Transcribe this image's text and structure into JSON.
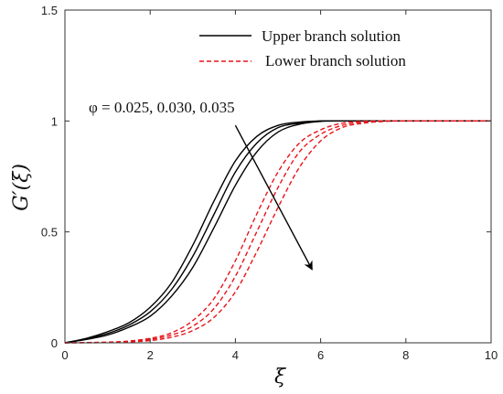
{
  "chart_data": {
    "type": "line",
    "xlabel": "ξ",
    "ylabel": "G′(ξ)",
    "xlim": [
      0,
      10
    ],
    "ylim": [
      0,
      1.5
    ],
    "xticks": [
      0,
      2,
      4,
      6,
      8,
      10
    ],
    "yticks": [
      0,
      0.5,
      1,
      1.5
    ],
    "xtick_labels": [
      "0",
      "2",
      "4",
      "6",
      "8",
      "10"
    ],
    "ytick_labels": [
      "0",
      "0.5",
      "1",
      "1.5"
    ],
    "grid": false,
    "legend_position": "top-right",
    "legend": [
      {
        "label": "Upper branch solution",
        "color": "#000000",
        "dash": "solid"
      },
      {
        "label": "Lower branch solution",
        "color": "#e8141a",
        "dash": "dashed"
      }
    ],
    "annotation": {
      "text": "φ = 0.025, 0.030, 0.035",
      "arrow_from": [
        4.0,
        0.98
      ],
      "arrow_to": [
        5.8,
        0.33
      ]
    },
    "series": [
      {
        "branch": "upper",
        "phi": 0.025,
        "color": "#000000",
        "dash": "solid",
        "x": [
          0,
          0.5,
          1,
          1.5,
          2,
          2.5,
          3,
          3.5,
          4,
          4.5,
          5,
          5.5,
          6,
          6.5,
          7,
          8,
          9,
          10
        ],
        "y": [
          0,
          0.02,
          0.05,
          0.09,
          0.16,
          0.27,
          0.44,
          0.64,
          0.82,
          0.93,
          0.98,
          0.995,
          1,
          1,
          1,
          1,
          1,
          1
        ]
      },
      {
        "branch": "upper",
        "phi": 0.03,
        "color": "#000000",
        "dash": "solid",
        "x": [
          0,
          0.5,
          1,
          1.5,
          2,
          2.5,
          3,
          3.5,
          4,
          4.5,
          5,
          5.5,
          6,
          6.5,
          7,
          8,
          9,
          10
        ],
        "y": [
          0,
          0.018,
          0.042,
          0.08,
          0.14,
          0.24,
          0.39,
          0.58,
          0.77,
          0.9,
          0.97,
          0.99,
          1,
          1,
          1,
          1,
          1,
          1
        ]
      },
      {
        "branch": "upper",
        "phi": 0.035,
        "color": "#000000",
        "dash": "solid",
        "x": [
          0,
          0.5,
          1,
          1.5,
          2,
          2.5,
          3,
          3.5,
          4,
          4.5,
          5,
          5.5,
          6,
          6.5,
          7,
          8,
          9,
          10
        ],
        "y": [
          0,
          0.015,
          0.035,
          0.07,
          0.12,
          0.21,
          0.34,
          0.52,
          0.71,
          0.86,
          0.95,
          0.985,
          0.998,
          1,
          1,
          1,
          1,
          1
        ]
      },
      {
        "branch": "lower",
        "phi": 0.025,
        "color": "#e8141a",
        "dash": "dashed",
        "x": [
          0,
          1,
          1.5,
          2,
          2.5,
          3,
          3.5,
          4,
          4.5,
          5,
          5.5,
          6,
          6.5,
          7,
          7.5,
          8,
          9,
          10
        ],
        "y": [
          0,
          0.003,
          0.008,
          0.02,
          0.045,
          0.1,
          0.2,
          0.37,
          0.58,
          0.77,
          0.9,
          0.96,
          0.99,
          0.998,
          1,
          1,
          1,
          1
        ]
      },
      {
        "branch": "lower",
        "phi": 0.03,
        "color": "#e8141a",
        "dash": "dashed",
        "x": [
          0,
          1,
          1.5,
          2,
          2.5,
          3,
          3.5,
          4,
          4.5,
          5,
          5.5,
          6,
          6.5,
          7,
          7.5,
          8,
          9,
          10
        ],
        "y": [
          0,
          0.002,
          0.006,
          0.015,
          0.035,
          0.075,
          0.155,
          0.3,
          0.5,
          0.7,
          0.86,
          0.94,
          0.98,
          0.995,
          1,
          1,
          1,
          1
        ]
      },
      {
        "branch": "lower",
        "phi": 0.035,
        "color": "#e8141a",
        "dash": "dashed",
        "x": [
          0,
          1,
          1.5,
          2,
          2.5,
          3,
          3.5,
          4,
          4.5,
          5,
          5.5,
          6,
          6.5,
          7,
          7.5,
          8,
          9,
          10
        ],
        "y": [
          0,
          0.001,
          0.004,
          0.01,
          0.025,
          0.055,
          0.115,
          0.23,
          0.41,
          0.61,
          0.79,
          0.91,
          0.97,
          0.99,
          0.998,
          1,
          1,
          1
        ]
      }
    ]
  }
}
